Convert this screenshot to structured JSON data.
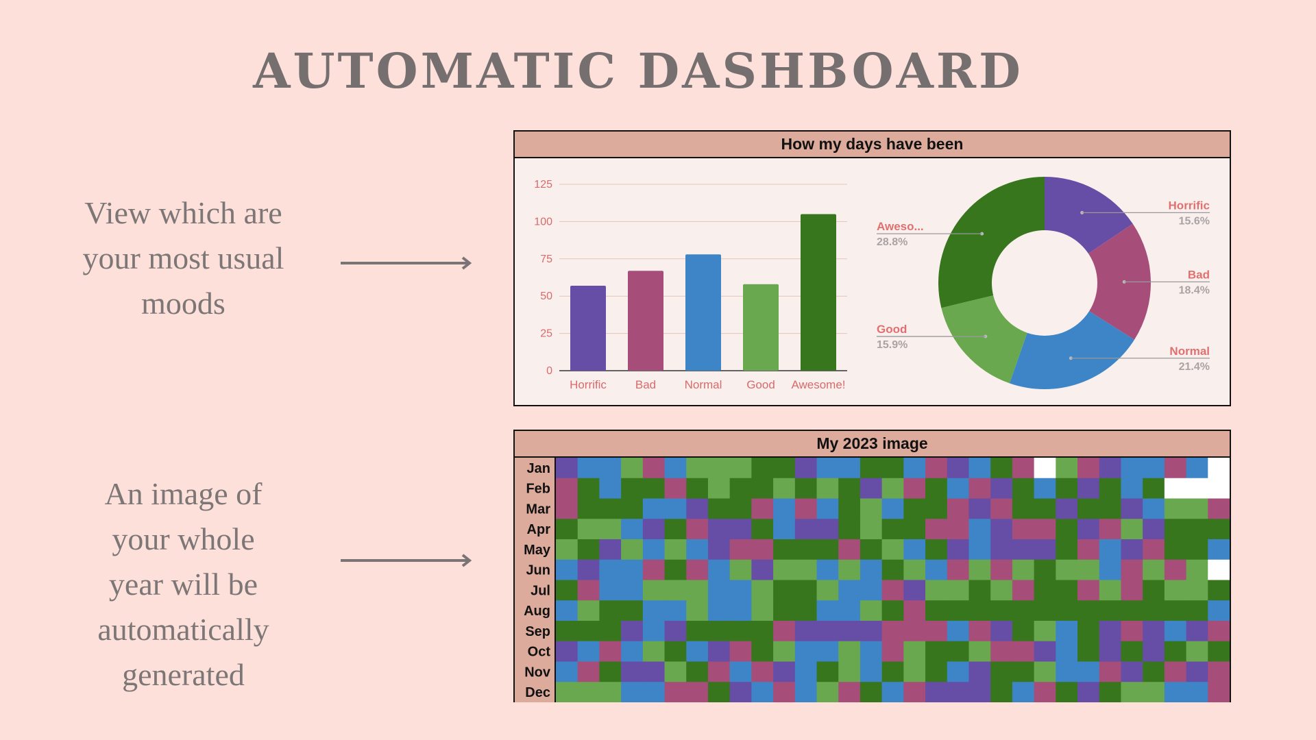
{
  "page": {
    "title": "AUTOMATIC DASHBOARD",
    "description_1": [
      "View which are",
      "your most usual",
      "moods"
    ],
    "description_2": [
      "An image of",
      "your whole",
      "year will be",
      "automatically",
      "generated"
    ]
  },
  "colors": {
    "Horrific": "#664ea6",
    "Bad": "#a64d79",
    "Normal": "#3d85c6",
    "Good": "#6aa84f",
    "Awesome": "#38761d",
    "empty": "#ffffff"
  },
  "panel1": {
    "title": "How my days have been"
  },
  "panel2": {
    "title": "My 2023 image"
  },
  "chart_data": [
    {
      "type": "bar",
      "categories": [
        "Horrific",
        "Bad",
        "Normal",
        "Good",
        "Awesome!"
      ],
      "values": [
        57,
        67,
        78,
        58,
        105
      ],
      "yticks": [
        "0",
        "25",
        "50",
        "75",
        "100",
        "125"
      ],
      "ylim": [
        0,
        125
      ],
      "grid": true
    },
    {
      "type": "pie",
      "donut": true,
      "slices": [
        {
          "label": "Horrific",
          "label_text": "Horrific",
          "percent": 15.6,
          "percent_text": "15.6%",
          "color_key": "Horrific"
        },
        {
          "label": "Bad",
          "label_text": "Bad",
          "percent": 18.4,
          "percent_text": "18.4%",
          "color_key": "Bad"
        },
        {
          "label": "Normal",
          "label_text": "Normal",
          "percent": 21.4,
          "percent_text": "21.4%",
          "color_key": "Normal"
        },
        {
          "label": "Good",
          "label_text": "Good",
          "percent": 15.9,
          "percent_text": "15.9%",
          "color_key": "Good"
        },
        {
          "label": "Awesome!",
          "label_text": "Aweso...",
          "percent": 28.8,
          "percent_text": "28.8%",
          "color_key": "Awesome"
        }
      ]
    },
    {
      "type": "heatmap",
      "rows": [
        "Jan",
        "Feb",
        "Mar",
        "Apr",
        "May",
        "Jun",
        "Jul",
        "Aug",
        "Sep",
        "Oct",
        "Nov",
        "Dec"
      ],
      "columns": 31,
      "legend": {
        "H": "Horrific",
        "B": "Bad",
        "N": "Normal",
        "G": "Good",
        "A": "Awesome",
        ".": "empty"
      },
      "cells": [
        "HNNGBNGGGAAHNNAANBHNAB GBHNNBN",
        "BANAABAGAAGAGAHGBANBHANAHANA...",
        "BAAANNHAABNBNAGNAABHBAAHAAHNGGB",
        "AGGNHABHHANHHAGAABBNHBBAHBGHAAA.",
        "GAHGNGNHBBAAABAGNAHNHHHABNHBAAN",
        "NHNNBABNGHGGNGNAGNBGBGAGGNBGBG.",
        "ABNNGGGNNGAAGNNBHGGAGBAABGBAGGA",
        "NGAANNGNNGAANNGABAAAAAAAAAAAAANB",
        "AAAHNHAAAABHHHHBBBNBHAGNAHBHNHB.",
        "HNBNGANHBAGNNGNBGAAGBBHNAHAHAGA",
        "NBAHHGABNBHNAGNAGANHAAGNNBHABHB.",
        "GGGNNBBAHNBNGBANBHHHANBAHAGGNNBA"
      ]
    }
  ]
}
